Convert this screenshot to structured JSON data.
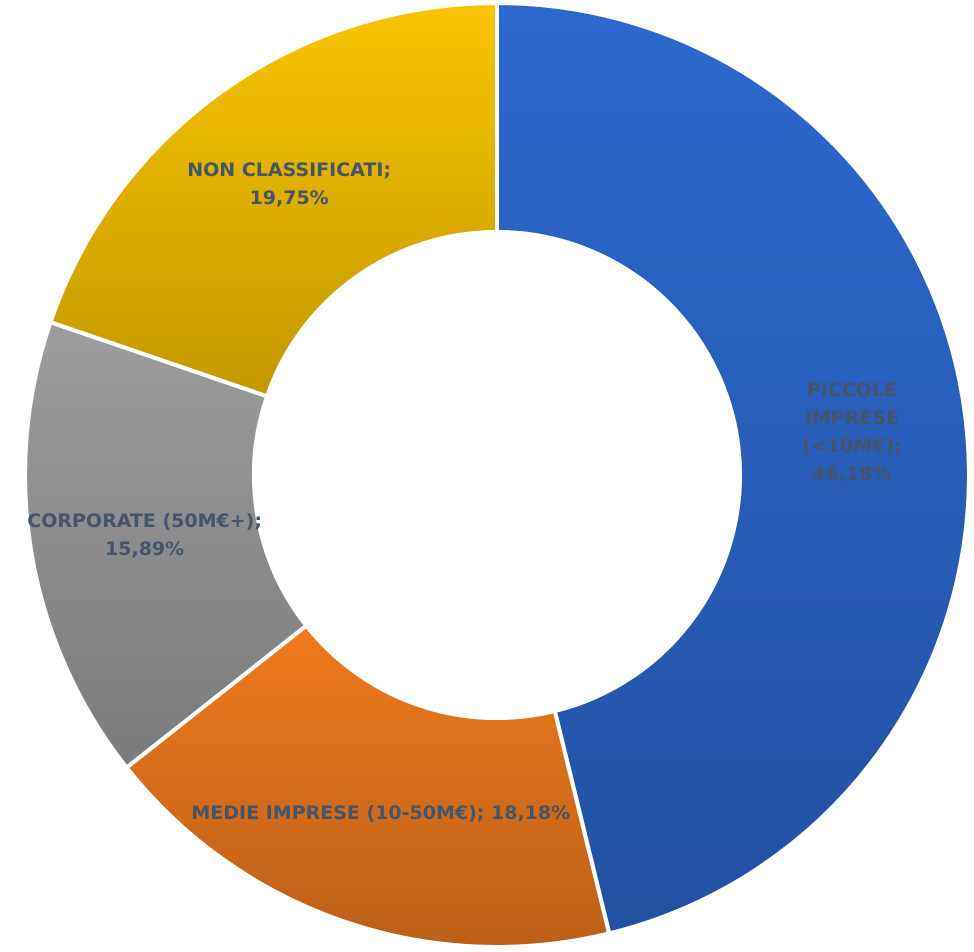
{
  "chart_data": {
    "type": "donut",
    "categories": [
      "PICCOLE IMPRESE (<10M€)",
      "MEDIE IMPRESE (10-50M€)",
      "CORPORATE (50M€+)",
      "NON CLASSIFICATI"
    ],
    "values": [
      46.18,
      18.18,
      15.89,
      19.75
    ],
    "value_labels": [
      "46,18%",
      "18,18%",
      "15,89%",
      "19,75%"
    ],
    "label_separator": ";",
    "colors": [
      "#2d68cf",
      "#f07a1e",
      "#9d9d9d",
      "#f9c400"
    ]
  }
}
